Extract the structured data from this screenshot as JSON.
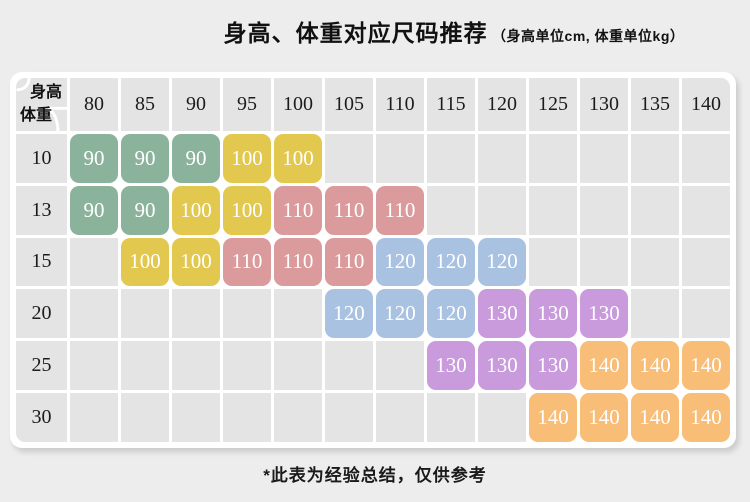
{
  "title": {
    "main": "身高、体重对应尺码推荐",
    "note": "（身高单位cm, 体重单位kg）"
  },
  "footer": "*此表为经验总结，仅供参考",
  "colors": {
    "green": "#8BB39B",
    "yellow": "#E3C850",
    "pink": "#DB9A9C",
    "blue": "#A9C2E1",
    "purple": "#C99BDC",
    "orange": "#F8BD76"
  },
  "table": {
    "corner": {
      "top": "身高",
      "bottom": "体重"
    },
    "heights": [
      "80",
      "85",
      "90",
      "95",
      "100",
      "105",
      "110",
      "115",
      "120",
      "125",
      "130",
      "135",
      "140"
    ],
    "rows": [
      {
        "weight": "10",
        "cells": [
          {
            "v": "90",
            "c": "green"
          },
          {
            "v": "90",
            "c": "green"
          },
          {
            "v": "90",
            "c": "green"
          },
          {
            "v": "100",
            "c": "yellow"
          },
          {
            "v": "100",
            "c": "yellow"
          },
          null,
          null,
          null,
          null,
          null,
          null,
          null,
          null
        ]
      },
      {
        "weight": "13",
        "cells": [
          {
            "v": "90",
            "c": "green"
          },
          {
            "v": "90",
            "c": "green"
          },
          {
            "v": "100",
            "c": "yellow"
          },
          {
            "v": "100",
            "c": "yellow"
          },
          {
            "v": "110",
            "c": "pink"
          },
          {
            "v": "110",
            "c": "pink"
          },
          {
            "v": "110",
            "c": "pink"
          },
          null,
          null,
          null,
          null,
          null,
          null
        ]
      },
      {
        "weight": "15",
        "cells": [
          null,
          {
            "v": "100",
            "c": "yellow"
          },
          {
            "v": "100",
            "c": "yellow"
          },
          {
            "v": "110",
            "c": "pink"
          },
          {
            "v": "110",
            "c": "pink"
          },
          {
            "v": "110",
            "c": "pink"
          },
          {
            "v": "120",
            "c": "blue"
          },
          {
            "v": "120",
            "c": "blue"
          },
          {
            "v": "120",
            "c": "blue"
          },
          null,
          null,
          null,
          null
        ]
      },
      {
        "weight": "20",
        "cells": [
          null,
          null,
          null,
          null,
          null,
          {
            "v": "120",
            "c": "blue"
          },
          {
            "v": "120",
            "c": "blue"
          },
          {
            "v": "120",
            "c": "blue"
          },
          {
            "v": "130",
            "c": "purple"
          },
          {
            "v": "130",
            "c": "purple"
          },
          {
            "v": "130",
            "c": "purple"
          },
          null,
          null
        ]
      },
      {
        "weight": "25",
        "cells": [
          null,
          null,
          null,
          null,
          null,
          null,
          null,
          {
            "v": "130",
            "c": "purple"
          },
          {
            "v": "130",
            "c": "purple"
          },
          {
            "v": "130",
            "c": "purple"
          },
          {
            "v": "140",
            "c": "orange"
          },
          {
            "v": "140",
            "c": "orange"
          },
          {
            "v": "140",
            "c": "orange"
          }
        ]
      },
      {
        "weight": "30",
        "cells": [
          null,
          null,
          null,
          null,
          null,
          null,
          null,
          null,
          null,
          {
            "v": "140",
            "c": "orange"
          },
          {
            "v": "140",
            "c": "orange"
          },
          {
            "v": "140",
            "c": "orange"
          },
          {
            "v": "140",
            "c": "orange"
          }
        ]
      }
    ]
  }
}
